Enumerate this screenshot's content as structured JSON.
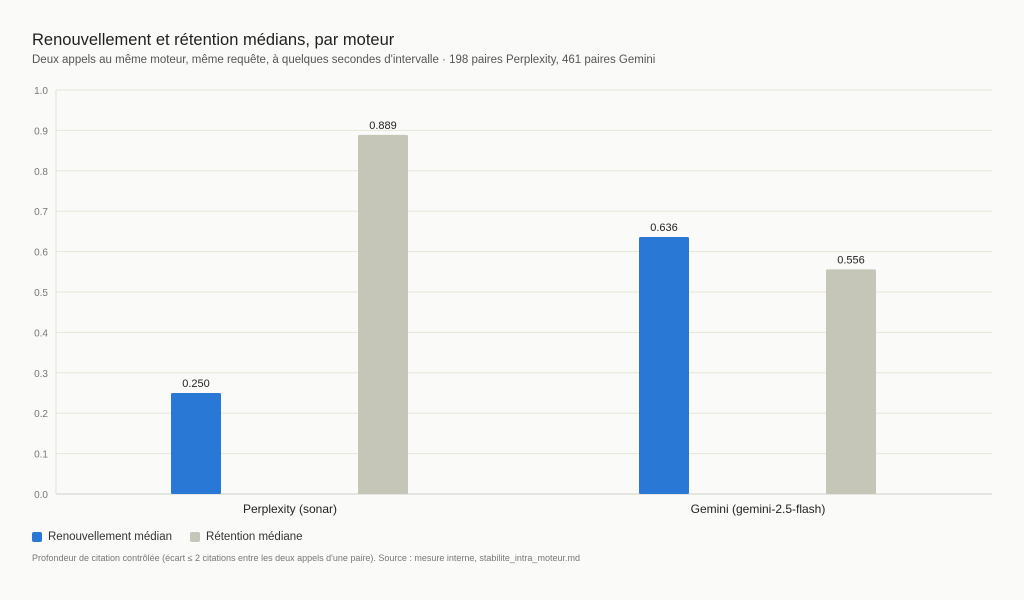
{
  "title": "Renouvellement et rétention médians, par moteur",
  "subtitle": "Deux appels au même moteur, même requête, à quelques secondes d'intervalle · 198 paires Perplexity, 461 paires Gemini",
  "footnote": "Profondeur de citation contrôlée (écart ≤ 2 citations entre les deux appels d'une paire). Source : mesure interne, stabilite_intra_moteur.md",
  "colors": {
    "renouvellement": "#2a78d6",
    "retention": "#c5c5b8"
  },
  "chart_data": {
    "type": "bar",
    "categories": [
      "Perplexity (sonar)",
      "Gemini (gemini-2.5-flash)"
    ],
    "series": [
      {
        "name": "Renouvellement médian",
        "values": [
          0.25,
          0.636
        ],
        "labels": [
          "0.250",
          "0.636"
        ]
      },
      {
        "name": "Rétention médiane",
        "values": [
          0.889,
          0.556
        ],
        "labels": [
          "0.889",
          "0.556"
        ]
      }
    ],
    "ylim": [
      0,
      1.0
    ],
    "yticks": [
      "0.0",
      "0.1",
      "0.2",
      "0.3",
      "0.4",
      "0.5",
      "0.6",
      "0.7",
      "0.8",
      "0.9",
      "1.0"
    ],
    "grid": true,
    "legend": "bottom-left"
  }
}
